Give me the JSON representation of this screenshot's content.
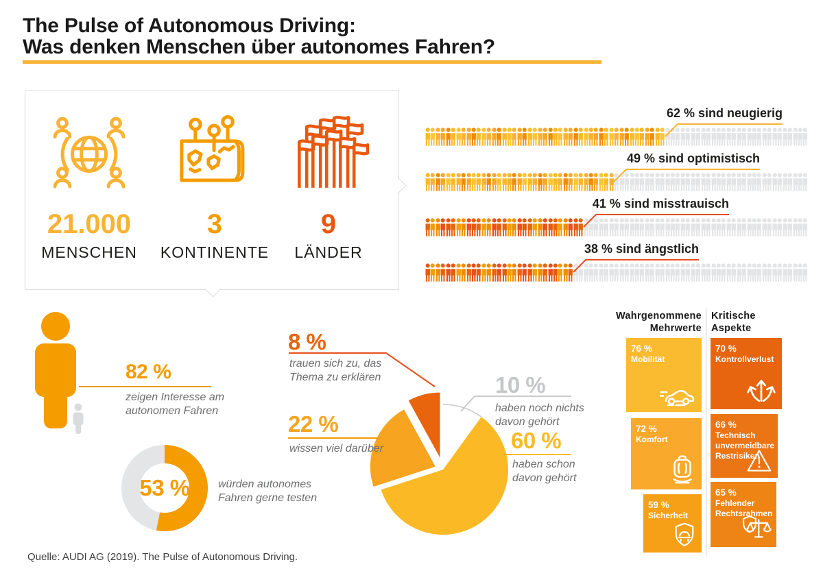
{
  "header": {
    "title_line1": "The Pulse of Autonomous Driving:",
    "title_line2": "Was denken Menschen über autonomes Fahren?",
    "accent_color": "#F9B233"
  },
  "survey": {
    "stats": [
      {
        "value": "21.000",
        "label": "MENSCHEN",
        "color": "#F9B233",
        "icon": "globe-people-icon"
      },
      {
        "value": "3",
        "label": "KONTINENTE",
        "color": "#F59C00",
        "icon": "map-pins-icon"
      },
      {
        "value": "9",
        "label": "LÄNDER",
        "color": "#E8590F",
        "icon": "flags-icon"
      }
    ]
  },
  "panels": {
    "left": {
      "title_line1": "Wahrgenommene",
      "title_line2": "Mehrwerte",
      "tiles": [
        {
          "pct_label": "76 %",
          "label": "Mobilität",
          "value": 76,
          "color": "#FBBB31",
          "icon": "car-icon"
        },
        {
          "pct_label": "72 %",
          "label": "Komfort",
          "value": 72,
          "color": "#F9A92B",
          "icon": "seat-icon"
        },
        {
          "pct_label": "59 %",
          "label": "Sicherheit",
          "value": 59,
          "color": "#F5A017",
          "icon": "shield-car-icon"
        }
      ]
    },
    "right": {
      "title_line1": "Kritische",
      "title_line2": "Aspekte",
      "tiles": [
        {
          "pct_label": "70 %",
          "label": "Kontrollverlust",
          "value": 70,
          "color": "#E7650F",
          "icon": "split-arrows-icon"
        },
        {
          "pct_label": "66 %",
          "label": "Technisch unvermeidbare Restrisiken",
          "value": 66,
          "color": "#EB7414",
          "icon": "warning-triangle-icon"
        },
        {
          "pct_label": "65 %",
          "label": "Fehlender Rechtsrahmen",
          "value": 65,
          "color": "#ED8414",
          "icon": "scales-icon"
        }
      ]
    }
  },
  "footer": {
    "source": "Quelle: AUDI AG (2019). The Pulse of Autonomous Driving."
  },
  "chart_data": [
    {
      "type": "pictogram-bar",
      "unit": "%",
      "max": 100,
      "empty_color": "#E3E4E5",
      "rows": [
        {
          "value": 62,
          "label": "62 % sind neugierig",
          "accent": "#F9B233",
          "palette": [
            "#FBBA25",
            "#F9A825",
            "#FFC432",
            "#F08C00",
            "#F9B233"
          ]
        },
        {
          "value": 49,
          "label": "49 % sind optimistisch",
          "accent": "#F9B233",
          "palette": [
            "#F9B233",
            "#FFC432",
            "#F08C00",
            "#FBBA25",
            "#F9A825"
          ]
        },
        {
          "value": 41,
          "label": "41 % sind misstrauisch",
          "accent": "#E94E1B",
          "palette": [
            "#F08C00",
            "#E8650D",
            "#E94E1B",
            "#F59C00",
            "#E55A0B"
          ]
        },
        {
          "value": 38,
          "label": "38 % sind ängstlich",
          "accent": "#E94E1B",
          "palette": [
            "#E8650D",
            "#F59C00",
            "#E94E1B",
            "#F08C00",
            "#E55A0B"
          ]
        }
      ]
    },
    {
      "type": "pie",
      "direction": "clockwise",
      "start_angle_deg": 0,
      "slices": [
        {
          "value": 10,
          "pct_label": "10 %",
          "caption": "haben noch nichts davon gehört",
          "color": "#FFFFFF",
          "label_color": "#C5C6C7",
          "line_color": "#C8C9CA",
          "arc_color": "#C8C9CA",
          "explode": 0
        },
        {
          "value": 60,
          "pct_label": "60 %",
          "caption": "haben schon davon gehört",
          "color": "#FBBA25",
          "label_color": "#FBBA25",
          "line_color": "#FBBA25",
          "explode": 0
        },
        {
          "value": 22,
          "pct_label": "22 %",
          "caption": "wissen viel darüber",
          "color": "#F7A420",
          "label_color": "#F7A420",
          "line_color": "#F59C00",
          "explode": 12
        },
        {
          "value": 8,
          "pct_label": "8 %",
          "caption": "trauen sich zu, das Thema zu erklären",
          "color": "#E8650D",
          "label_color": "#E8650D",
          "line_color": "#E94E1B",
          "explode": 18
        }
      ]
    },
    {
      "type": "donut",
      "value": 53,
      "pct_label": "53 %",
      "caption": "würden autonomes Fahren gerne testen",
      "color": "#F59C00",
      "track_color": "#E4E5E6"
    },
    {
      "type": "icon-stat",
      "value": 82,
      "pct_label": "82 %",
      "caption": "zeigen Interesse am autonomen Fahren",
      "color": "#F59C00",
      "line_color": "#F59C00",
      "secondary_color": "#DADBDC"
    },
    {
      "type": "bar",
      "title": "Wahrgenommene Mehrwerte",
      "unit": "%",
      "categories": [
        "Mobilität",
        "Komfort",
        "Sicherheit"
      ],
      "values": [
        76,
        72,
        59
      ]
    },
    {
      "type": "bar",
      "title": "Kritische Aspekte",
      "unit": "%",
      "categories": [
        "Kontrollverlust",
        "Technisch unvermeidbare Restrisiken",
        "Fehlender Rechtsrahmen"
      ],
      "values": [
        70,
        66,
        65
      ]
    }
  ]
}
